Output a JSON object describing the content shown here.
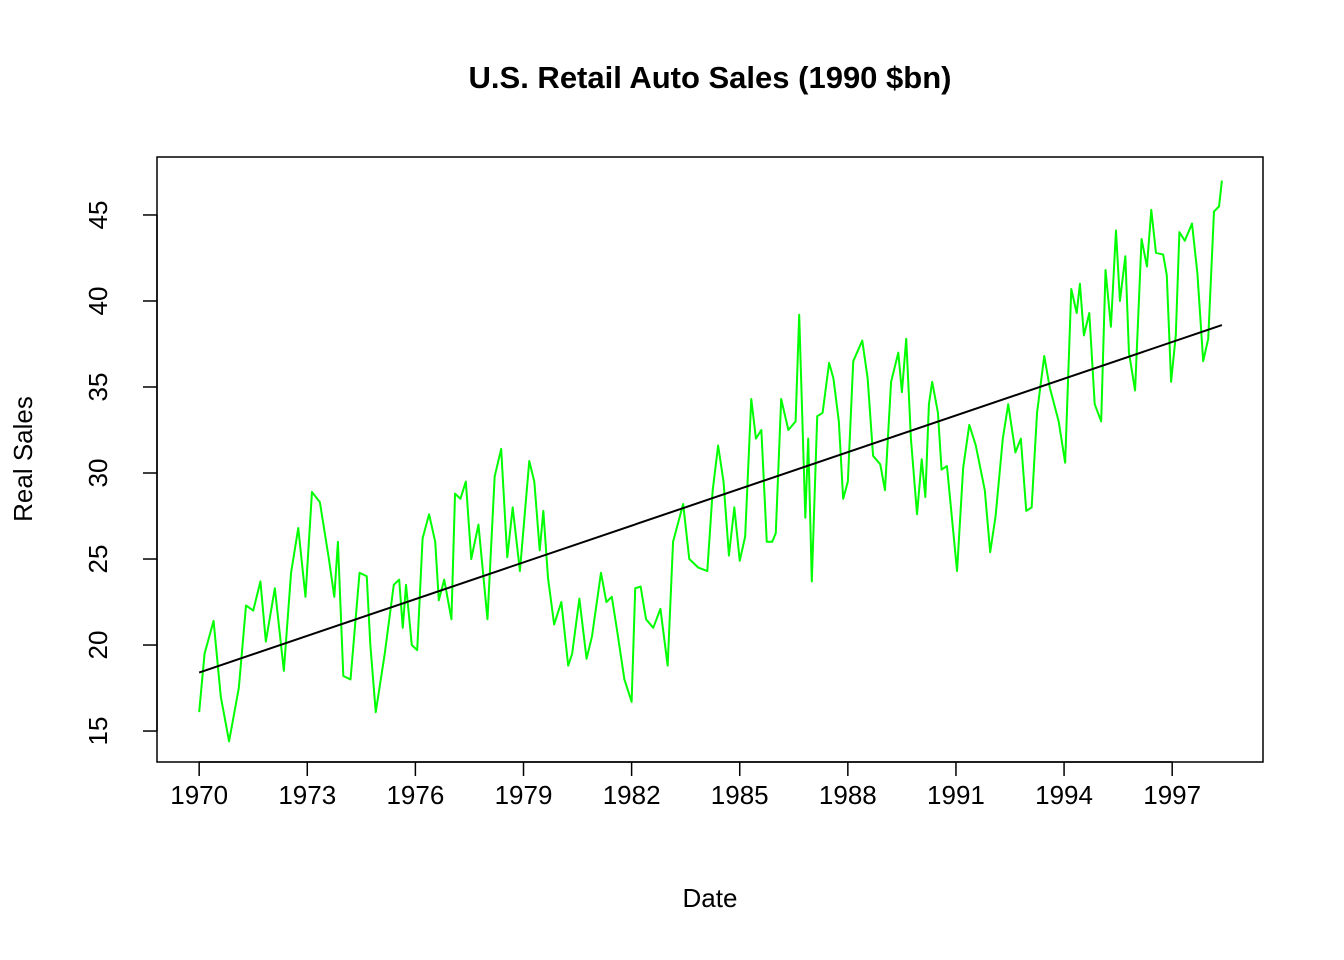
{
  "chart_data": {
    "type": "line",
    "title": "U.S. Retail Auto Sales (1990 $bn)",
    "xlabel": "Date",
    "ylabel": "Real Sales",
    "xlim": [
      1968.83,
      1999.52
    ],
    "ylim": [
      13.2,
      48.37
    ],
    "xticks": [
      1970,
      1973,
      1976,
      1979,
      1982,
      1985,
      1988,
      1991,
      1994,
      1997
    ],
    "yticks": [
      15,
      20,
      25,
      30,
      35,
      40,
      45
    ],
    "grid": false,
    "series": [
      {
        "color": "#00ff00",
        "x": [
          1970.0,
          1970.15,
          1970.4,
          1970.6,
          1970.83,
          1971.1,
          1971.3,
          1971.5,
          1971.7,
          1971.85,
          1972.1,
          1972.35,
          1972.55,
          1972.75,
          1972.95,
          1973.13,
          1973.35,
          1973.6,
          1973.75,
          1973.85,
          1974.0,
          1974.2,
          1974.45,
          1974.65,
          1974.75,
          1974.9,
          1975.15,
          1975.4,
          1975.55,
          1975.65,
          1975.74,
          1975.9,
          1976.05,
          1976.2,
          1976.38,
          1976.55,
          1976.65,
          1976.8,
          1977.0,
          1977.1,
          1977.25,
          1977.4,
          1977.55,
          1977.75,
          1978.0,
          1978.2,
          1978.38,
          1978.55,
          1978.7,
          1978.9,
          1979.16,
          1979.3,
          1979.45,
          1979.55,
          1979.68,
          1979.85,
          1980.05,
          1980.24,
          1980.35,
          1980.55,
          1980.75,
          1980.9,
          1981.15,
          1981.3,
          1981.45,
          1981.6,
          1981.8,
          1982.0,
          1982.1,
          1982.25,
          1982.4,
          1982.6,
          1982.8,
          1983.0,
          1983.15,
          1983.43,
          1983.6,
          1983.85,
          1984.1,
          1984.25,
          1984.4,
          1984.55,
          1984.7,
          1984.85,
          1985.0,
          1985.15,
          1985.25,
          1985.32,
          1985.45,
          1985.6,
          1985.75,
          1985.9,
          1986.0,
          1986.15,
          1986.35,
          1986.55,
          1986.65,
          1986.82,
          1986.9,
          1987.0,
          1987.15,
          1987.3,
          1987.48,
          1987.6,
          1987.75,
          1987.87,
          1988.0,
          1988.15,
          1988.4,
          1988.55,
          1988.7,
          1988.9,
          1989.03,
          1989.2,
          1989.4,
          1989.5,
          1989.62,
          1989.75,
          1989.92,
          1990.05,
          1990.15,
          1990.25,
          1990.34,
          1990.5,
          1990.6,
          1990.75,
          1991.03,
          1991.2,
          1991.37,
          1991.55,
          1991.8,
          1991.95,
          1992.1,
          1992.3,
          1992.45,
          1992.65,
          1992.8,
          1992.95,
          1993.1,
          1993.25,
          1993.45,
          1993.6,
          1993.85,
          1994.03,
          1994.2,
          1994.35,
          1994.44,
          1994.55,
          1994.7,
          1994.85,
          1995.03,
          1995.15,
          1995.3,
          1995.44,
          1995.55,
          1995.7,
          1995.8,
          1995.97,
          1996.15,
          1996.3,
          1996.42,
          1996.55,
          1996.75,
          1996.85,
          1996.97,
          1997.1,
          1997.2,
          1997.35,
          1997.55,
          1997.7,
          1997.86,
          1998.0,
          1998.16,
          1998.3,
          1998.38
        ],
        "values": [
          16.1,
          19.5,
          21.4,
          17.0,
          14.4,
          17.5,
          22.3,
          22.0,
          23.7,
          20.2,
          23.3,
          18.5,
          24.2,
          26.8,
          22.8,
          28.9,
          28.3,
          25.0,
          22.8,
          26.0,
          18.2,
          18.0,
          24.2,
          24.0,
          20.0,
          16.1,
          19.5,
          23.5,
          23.8,
          21.0,
          23.5,
          20.0,
          19.7,
          26.2,
          27.6,
          26.0,
          22.6,
          23.8,
          21.5,
          28.8,
          28.5,
          29.5,
          25.0,
          27.0,
          21.5,
          29.8,
          31.4,
          25.1,
          28.0,
          24.3,
          30.7,
          29.5,
          25.5,
          27.8,
          23.9,
          21.2,
          22.5,
          18.8,
          19.5,
          22.7,
          19.2,
          20.5,
          24.2,
          22.5,
          22.8,
          20.8,
          18.0,
          16.7,
          23.3,
          23.4,
          21.5,
          21.0,
          22.1,
          18.8,
          26.0,
          28.2,
          25.0,
          24.5,
          24.3,
          29.0,
          31.6,
          29.5,
          25.2,
          28.0,
          24.9,
          26.3,
          31.0,
          34.3,
          32.0,
          32.5,
          26.0,
          26.0,
          26.5,
          34.3,
          32.5,
          33.0,
          39.2,
          27.4,
          32.0,
          23.7,
          33.3,
          33.5,
          36.4,
          35.5,
          33.0,
          28.5,
          29.5,
          36.5,
          37.7,
          35.5,
          31.0,
          30.5,
          29.0,
          35.3,
          37.0,
          34.7,
          37.8,
          32.0,
          27.6,
          30.8,
          28.6,
          34.0,
          35.3,
          33.5,
          30.2,
          30.4,
          24.3,
          30.3,
          32.8,
          31.6,
          29.0,
          25.4,
          27.5,
          32.0,
          34.0,
          31.2,
          32.0,
          27.8,
          28.0,
          33.5,
          36.8,
          35.0,
          33.0,
          30.6,
          40.7,
          39.3,
          41.0,
          38.0,
          39.3,
          34.0,
          33.0,
          41.8,
          38.5,
          44.1,
          40.0,
          42.6,
          37.0,
          34.8,
          43.6,
          42.0,
          45.3,
          42.8,
          42.7,
          41.5,
          35.3,
          38.0,
          44.0,
          43.5,
          44.5,
          41.6,
          36.5,
          37.8,
          45.2,
          45.5,
          47.0
        ]
      },
      {
        "color": "#000000",
        "x": [
          1970.0,
          1998.38
        ],
        "values": [
          18.4,
          38.6
        ]
      }
    ]
  }
}
